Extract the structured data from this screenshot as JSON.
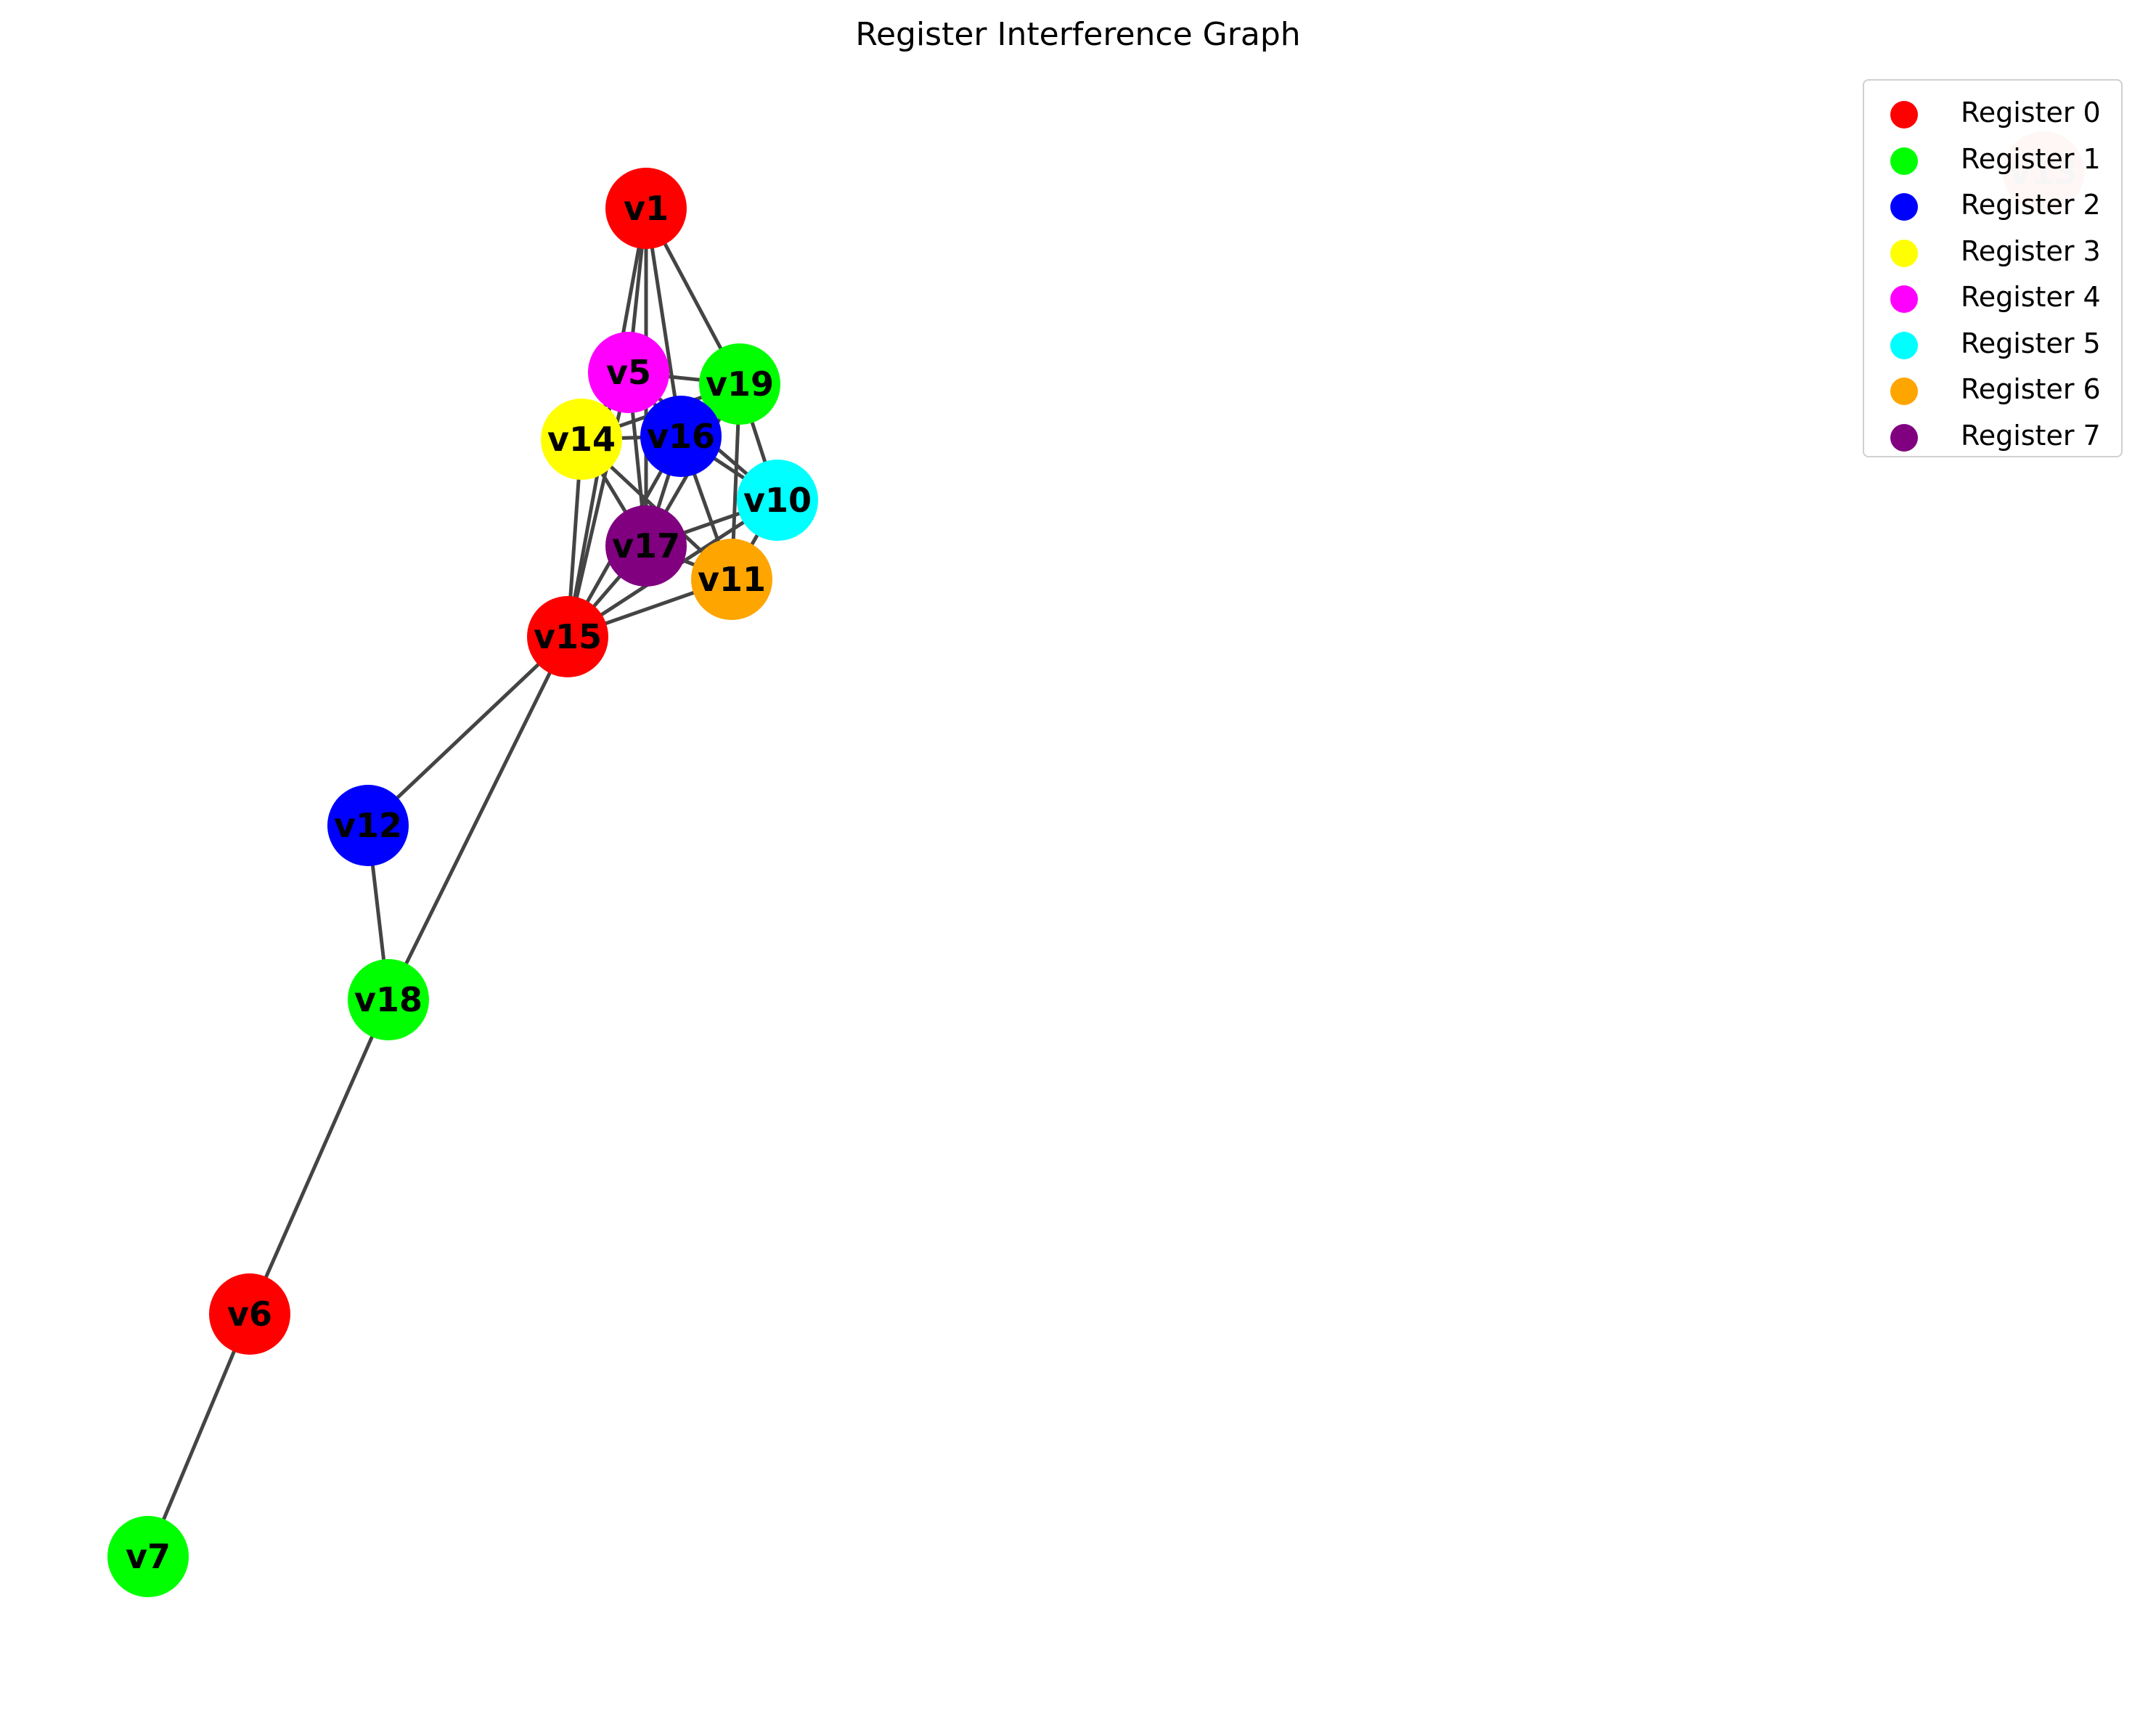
{
  "title": "Register Interference Graph",
  "colors": {
    "edge": "#444444",
    "register_0": "#ff0000",
    "register_1": "#00ff00",
    "register_2": "#0000ff",
    "register_3": "#ffff00",
    "register_4": "#ff00ff",
    "register_5": "#00ffff",
    "register_6": "#ffa500",
    "register_7": "#800080"
  },
  "legend": [
    {
      "label": "Register 0",
      "color": "#ff0000"
    },
    {
      "label": "Register 1",
      "color": "#00ff00"
    },
    {
      "label": "Register 2",
      "color": "#0000ff"
    },
    {
      "label": "Register 3",
      "color": "#ffff00"
    },
    {
      "label": "Register 4",
      "color": "#ff00ff"
    },
    {
      "label": "Register 5",
      "color": "#00ffff"
    },
    {
      "label": "Register 6",
      "color": "#ffa500"
    },
    {
      "label": "Register 7",
      "color": "#800080"
    }
  ],
  "nodes": [
    {
      "id": "v1",
      "register": 0
    },
    {
      "id": "v5",
      "register": 4
    },
    {
      "id": "v19",
      "register": 1
    },
    {
      "id": "v14",
      "register": 3
    },
    {
      "id": "v16",
      "register": 2
    },
    {
      "id": "v10",
      "register": 5
    },
    {
      "id": "v17",
      "register": 7
    },
    {
      "id": "v11",
      "register": 6
    },
    {
      "id": "v15",
      "register": 0
    },
    {
      "id": "v12",
      "register": 2
    },
    {
      "id": "v18",
      "register": 1
    },
    {
      "id": "v6",
      "register": 0
    },
    {
      "id": "v7",
      "register": 1
    },
    {
      "id": "v13",
      "register": 0,
      "faded": true
    }
  ],
  "edges": [
    [
      "v1",
      "v5"
    ],
    [
      "v1",
      "v16"
    ],
    [
      "v1",
      "v19"
    ],
    [
      "v1",
      "v17"
    ],
    [
      "v1",
      "v15"
    ],
    [
      "v5",
      "v14"
    ],
    [
      "v5",
      "v16"
    ],
    [
      "v5",
      "v19"
    ],
    [
      "v5",
      "v17"
    ],
    [
      "v5",
      "v15"
    ],
    [
      "v5",
      "v10"
    ],
    [
      "v19",
      "v16"
    ],
    [
      "v19",
      "v10"
    ],
    [
      "v19",
      "v11"
    ],
    [
      "v19",
      "v17"
    ],
    [
      "v14",
      "v16"
    ],
    [
      "v14",
      "v17"
    ],
    [
      "v14",
      "v15"
    ],
    [
      "v14",
      "v11"
    ],
    [
      "v14",
      "v19"
    ],
    [
      "v16",
      "v10"
    ],
    [
      "v16",
      "v17"
    ],
    [
      "v16",
      "v11"
    ],
    [
      "v16",
      "v15"
    ],
    [
      "v10",
      "v17"
    ],
    [
      "v10",
      "v11"
    ],
    [
      "v10",
      "v15"
    ],
    [
      "v17",
      "v11"
    ],
    [
      "v17",
      "v15"
    ],
    [
      "v11",
      "v15"
    ],
    [
      "v15",
      "v12"
    ],
    [
      "v15",
      "v18"
    ],
    [
      "v12",
      "v18"
    ],
    [
      "v18",
      "v6"
    ],
    [
      "v6",
      "v7"
    ]
  ]
}
